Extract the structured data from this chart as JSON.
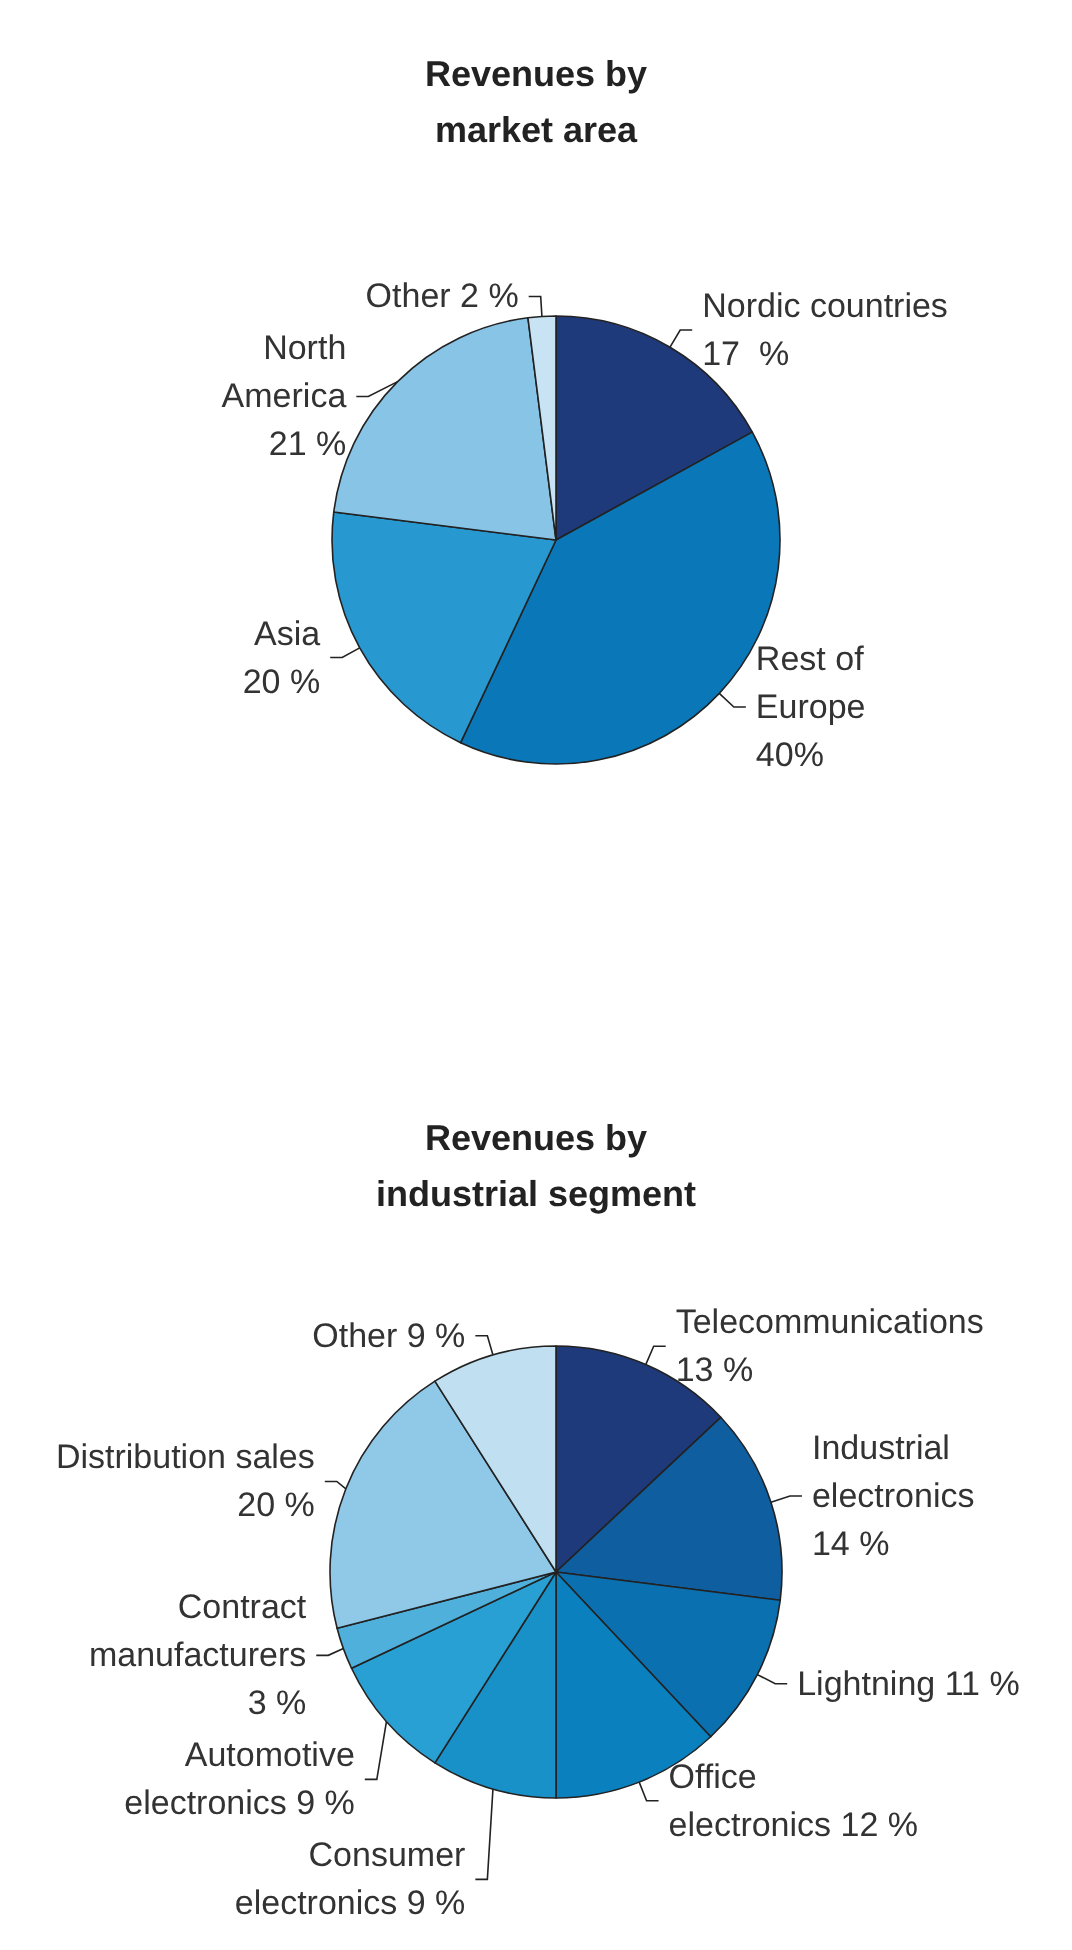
{
  "chart_data": [
    {
      "type": "pie",
      "title": "Revenues by\nmarket area",
      "categories": [
        "Nordic countries",
        "Rest of\nEurope",
        "Asia",
        "North\nAmerica",
        "Other"
      ],
      "values": [
        17,
        40,
        20,
        21,
        2
      ],
      "value_labels": [
        "\n17  %",
        "\n40%",
        "\n20 %",
        "\n21 %",
        " 2 %"
      ],
      "colors": [
        "#1f3a7a",
        "#0a78b8",
        "#2898d0",
        "#88c4e6",
        "#c8e4f4"
      ]
    },
    {
      "type": "pie",
      "title": "Revenues by\nindustrial segment",
      "categories": [
        "Telecommunications",
        "Industrial\nelectronics",
        "Lightning",
        "Office\nelectronics",
        "Consumer\nelectronics",
        "Automotive\nelectronics",
        "Contract\nmanufacturers",
        "Distribution sales",
        "Other"
      ],
      "values": [
        13,
        14,
        11,
        12,
        9,
        9,
        3,
        20,
        9
      ],
      "value_labels": [
        "\n13 %",
        "\n14 %",
        " 11 %",
        " 12 %",
        " 9 %",
        " 9 %",
        "\n3 %",
        "\n20 %",
        " 9 %"
      ],
      "colors": [
        "#1f3a7a",
        "#0f5fa0",
        "#0a70b0",
        "#0a80be",
        "#1890c8",
        "#28a0d4",
        "#50b0dc",
        "#90c8e8",
        "#c0e0f2"
      ]
    }
  ]
}
